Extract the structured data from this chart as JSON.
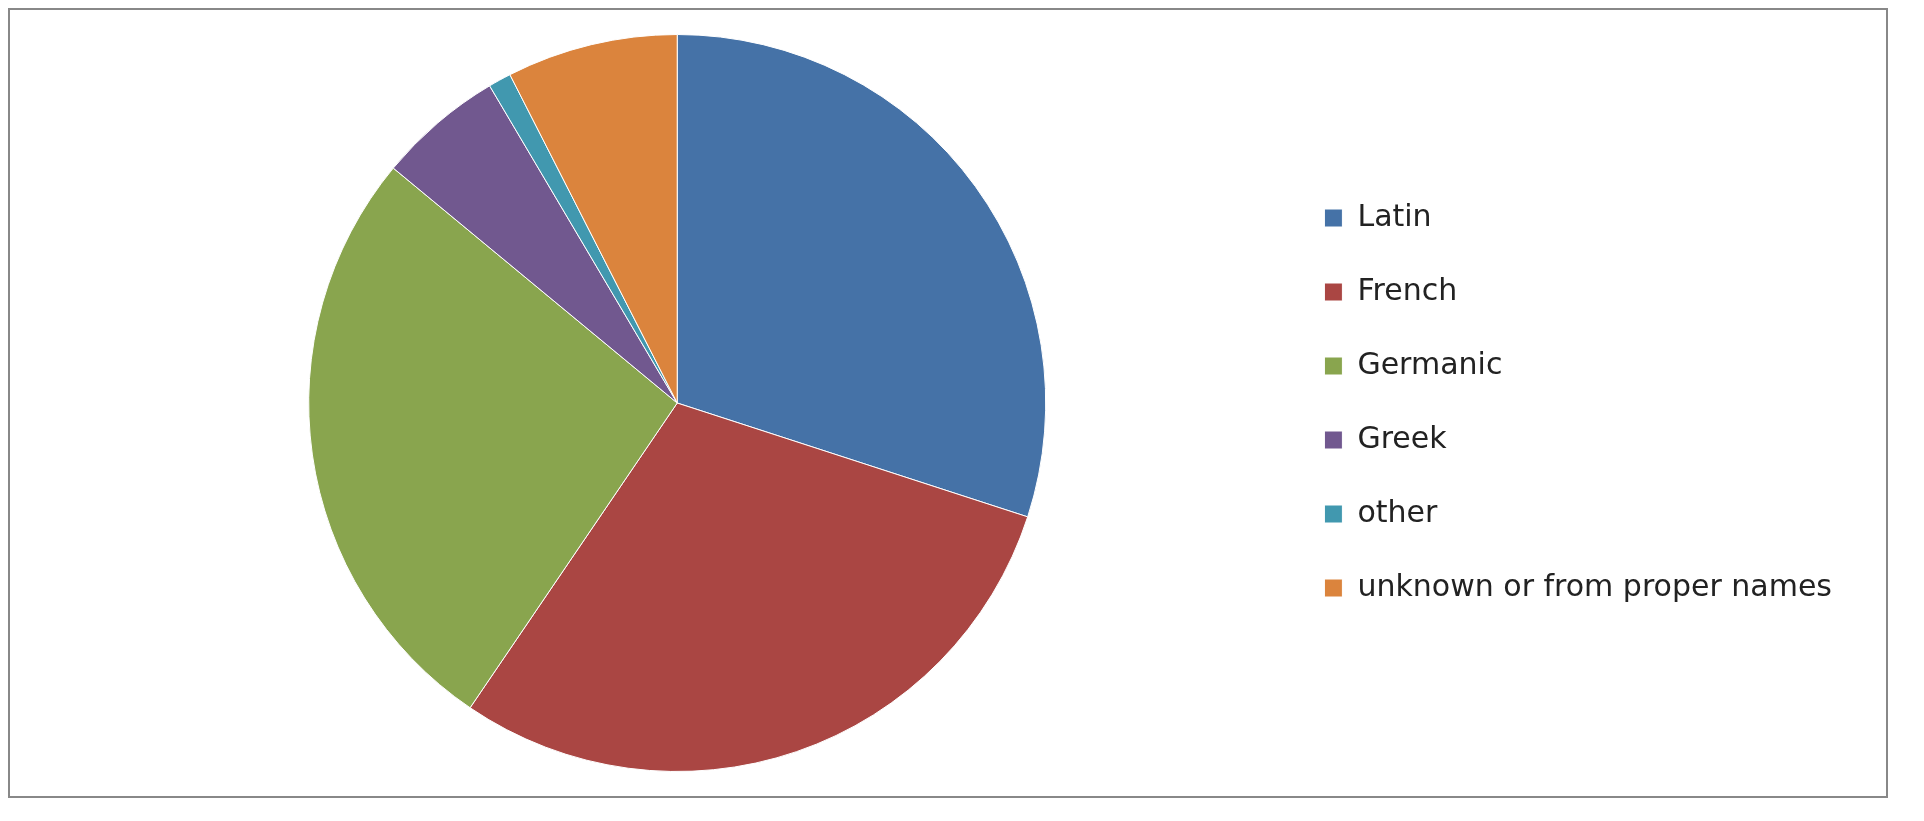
{
  "chart_data": {
    "type": "pie",
    "categories": [
      "Latin",
      "French",
      "Germanic",
      "Greek",
      "other",
      "unknown or from proper names"
    ],
    "values": [
      30,
      29.5,
      26.5,
      5.5,
      1,
      7.5
    ],
    "colors": [
      "#4572a7",
      "#aa4643",
      "#89a54e",
      "#71588f",
      "#4198af",
      "#db843d"
    ],
    "legend": "right"
  }
}
